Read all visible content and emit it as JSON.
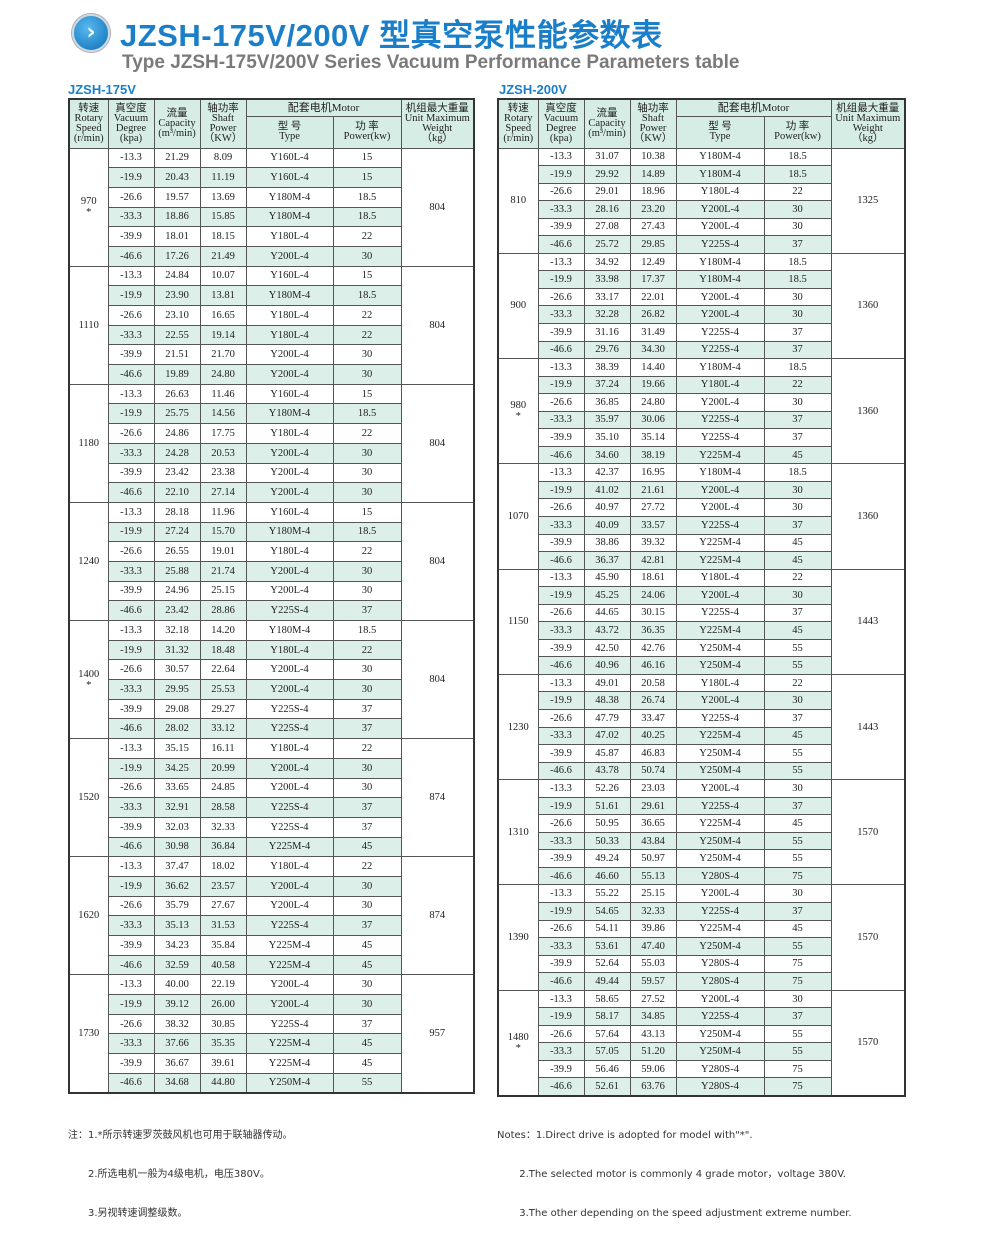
{
  "header": {
    "icon": "chevron-right-circle-icon",
    "title": "JZSH-175V/200V 型真空泵性能参数表",
    "subtitle": "Type JZSH-175V/200V  Series Vacuum Performance Parameters table"
  },
  "columns": {
    "speed": [
      "转速",
      "Rotary",
      "Speed",
      "(r/min)"
    ],
    "vacuum": [
      "真空度",
      "Vacuum",
      "Degree",
      "(kpa)"
    ],
    "capacity": [
      "流量",
      "Capacity",
      "(m³/min)"
    ],
    "shaft": [
      "轴功率",
      "Shaft",
      "Power",
      "（KW）"
    ],
    "motor": "配套电机Motor",
    "type": [
      "型  号",
      "Type"
    ],
    "power": [
      "功  率",
      "Power(kw)"
    ],
    "weight": [
      "机组最大重量",
      "Unit Maximum",
      "Weight",
      "（kg）"
    ]
  },
  "tables": [
    {
      "label": "JZSH-175V",
      "groups": [
        {
          "speed": "970",
          "star": "*",
          "weight": "804",
          "rows": [
            [
              "-13.3",
              "21.29",
              "8.09",
              "Y160L-4",
              "15"
            ],
            [
              "-19.9",
              "20.43",
              "11.19",
              "Y160L-4",
              "15"
            ],
            [
              "-26.6",
              "19.57",
              "13.69",
              "Y180M-4",
              "18.5"
            ],
            [
              "-33.3",
              "18.86",
              "15.85",
              "Y180M-4",
              "18.5"
            ],
            [
              "-39.9",
              "18.01",
              "18.15",
              "Y180L-4",
              "22"
            ],
            [
              "-46.6",
              "17.26",
              "21.49",
              "Y200L-4",
              "30"
            ]
          ]
        },
        {
          "speed": "1110",
          "star": "",
          "weight": "804",
          "rows": [
            [
              "-13.3",
              "24.84",
              "10.07",
              "Y160L-4",
              "15"
            ],
            [
              "-19.9",
              "23.90",
              "13.81",
              "Y180M-4",
              "18.5"
            ],
            [
              "-26.6",
              "23.10",
              "16.65",
              "Y180L-4",
              "22"
            ],
            [
              "-33.3",
              "22.55",
              "19.14",
              "Y180L-4",
              "22"
            ],
            [
              "-39.9",
              "21.51",
              "21.70",
              "Y200L-4",
              "30"
            ],
            [
              "-46.6",
              "19.89",
              "24.80",
              "Y200L-4",
              "30"
            ]
          ]
        },
        {
          "speed": "1180",
          "star": "",
          "weight": "804",
          "rows": [
            [
              "-13.3",
              "26.63",
              "11.46",
              "Y160L-4",
              "15"
            ],
            [
              "-19.9",
              "25.75",
              "14.56",
              "Y180M-4",
              "18.5"
            ],
            [
              "-26.6",
              "24.86",
              "17.75",
              "Y180L-4",
              "22"
            ],
            [
              "-33.3",
              "24.28",
              "20.53",
              "Y200L-4",
              "30"
            ],
            [
              "-39.9",
              "23.42",
              "23.38",
              "Y200L-4",
              "30"
            ],
            [
              "-46.6",
              "22.10",
              "27.14",
              "Y200L-4",
              "30"
            ]
          ]
        },
        {
          "speed": "1240",
          "star": "",
          "weight": "804",
          "rows": [
            [
              "-13.3",
              "28.18",
              "11.96",
              "Y160L-4",
              "15"
            ],
            [
              "-19.9",
              "27.24",
              "15.70",
              "Y180M-4",
              "18.5"
            ],
            [
              "-26.6",
              "26.55",
              "19.01",
              "Y180L-4",
              "22"
            ],
            [
              "-33.3",
              "25.88",
              "21.74",
              "Y200L-4",
              "30"
            ],
            [
              "-39.9",
              "24.96",
              "25.15",
              "Y200L-4",
              "30"
            ],
            [
              "-46.6",
              "23.42",
              "28.86",
              "Y225S-4",
              "37"
            ]
          ]
        },
        {
          "speed": "1400",
          "star": "*",
          "weight": "804",
          "rows": [
            [
              "-13.3",
              "32.18",
              "14.20",
              "Y180M-4",
              "18.5"
            ],
            [
              "-19.9",
              "31.32",
              "18.48",
              "Y180L-4",
              "22"
            ],
            [
              "-26.6",
              "30.57",
              "22.64",
              "Y200L-4",
              "30"
            ],
            [
              "-33.3",
              "29.95",
              "25.53",
              "Y200L-4",
              "30"
            ],
            [
              "-39.9",
              "29.08",
              "29.27",
              "Y225S-4",
              "37"
            ],
            [
              "-46.6",
              "28.02",
              "33.12",
              "Y225S-4",
              "37"
            ]
          ]
        },
        {
          "speed": "1520",
          "star": "",
          "weight": "874",
          "rows": [
            [
              "-13.3",
              "35.15",
              "16.11",
              "Y180L-4",
              "22"
            ],
            [
              "-19.9",
              "34.25",
              "20.99",
              "Y200L-4",
              "30"
            ],
            [
              "-26.6",
              "33.65",
              "24.85",
              "Y200L-4",
              "30"
            ],
            [
              "-33.3",
              "32.91",
              "28.58",
              "Y225S-4",
              "37"
            ],
            [
              "-39.9",
              "32.03",
              "32.33",
              "Y225S-4",
              "37"
            ],
            [
              "-46.6",
              "30.98",
              "36.84",
              "Y225M-4",
              "45"
            ]
          ]
        },
        {
          "speed": "1620",
          "star": "",
          "weight": "874",
          "rows": [
            [
              "-13.3",
              "37.47",
              "18.02",
              "Y180L-4",
              "22"
            ],
            [
              "-19.9",
              "36.62",
              "23.57",
              "Y200L-4",
              "30"
            ],
            [
              "-26.6",
              "35.79",
              "27.67",
              "Y200L-4",
              "30"
            ],
            [
              "-33.3",
              "35.13",
              "31.53",
              "Y225S-4",
              "37"
            ],
            [
              "-39.9",
              "34.23",
              "35.84",
              "Y225M-4",
              "45"
            ],
            [
              "-46.6",
              "32.59",
              "40.58",
              "Y225M-4",
              "45"
            ]
          ]
        },
        {
          "speed": "1730",
          "star": "",
          "weight": "957",
          "rows": [
            [
              "-13.3",
              "40.00",
              "22.19",
              "Y200L-4",
              "30"
            ],
            [
              "-19.9",
              "39.12",
              "26.00",
              "Y200L-4",
              "30"
            ],
            [
              "-26.6",
              "38.32",
              "30.85",
              "Y225S-4",
              "37"
            ],
            [
              "-33.3",
              "37.66",
              "35.35",
              "Y225M-4",
              "45"
            ],
            [
              "-39.9",
              "36.67",
              "39.61",
              "Y225M-4",
              "45"
            ],
            [
              "-46.6",
              "34.68",
              "44.80",
              "Y250M-4",
              "55"
            ]
          ]
        }
      ]
    },
    {
      "label": "JZSH-200V",
      "groups": [
        {
          "speed": "810",
          "star": "",
          "weight": "1325",
          "rows": [
            [
              "-13.3",
              "31.07",
              "10.38",
              "Y180M-4",
              "18.5"
            ],
            [
              "-19.9",
              "29.92",
              "14.89",
              "Y180M-4",
              "18.5"
            ],
            [
              "-26.6",
              "29.01",
              "18.96",
              "Y180L-4",
              "22"
            ],
            [
              "-33.3",
              "28.16",
              "23.20",
              "Y200L-4",
              "30"
            ],
            [
              "-39.9",
              "27.08",
              "27.43",
              "Y200L-4",
              "30"
            ],
            [
              "-46.6",
              "25.72",
              "29.85",
              "Y225S-4",
              "37"
            ]
          ]
        },
        {
          "speed": "900",
          "star": "",
          "weight": "1360",
          "rows": [
            [
              "-13.3",
              "34.92",
              "12.49",
              "Y180M-4",
              "18.5"
            ],
            [
              "-19.9",
              "33.98",
              "17.37",
              "Y180M-4",
              "18.5"
            ],
            [
              "-26.6",
              "33.17",
              "22.01",
              "Y200L-4",
              "30"
            ],
            [
              "-33.3",
              "32.28",
              "26.82",
              "Y200L-4",
              "30"
            ],
            [
              "-39.9",
              "31.16",
              "31.49",
              "Y225S-4",
              "37"
            ],
            [
              "-46.6",
              "29.76",
              "34.30",
              "Y225S-4",
              "37"
            ]
          ]
        },
        {
          "speed": "980",
          "star": "*",
          "weight": "1360",
          "rows": [
            [
              "-13.3",
              "38.39",
              "14.40",
              "Y180M-4",
              "18.5"
            ],
            [
              "-19.9",
              "37.24",
              "19.66",
              "Y180L-4",
              "22"
            ],
            [
              "-26.6",
              "36.85",
              "24.80",
              "Y200L-4",
              "30"
            ],
            [
              "-33.3",
              "35.97",
              "30.06",
              "Y225S-4",
              "37"
            ],
            [
              "-39.9",
              "35.10",
              "35.14",
              "Y225S-4",
              "37"
            ],
            [
              "-46.6",
              "34.60",
              "38.19",
              "Y225M-4",
              "45"
            ]
          ]
        },
        {
          "speed": "1070",
          "star": "",
          "weight": "1360",
          "rows": [
            [
              "-13.3",
              "42.37",
              "16.95",
              "Y180M-4",
              "18.5"
            ],
            [
              "-19.9",
              "41.02",
              "21.61",
              "Y200L-4",
              "30"
            ],
            [
              "-26.6",
              "40.97",
              "27.72",
              "Y200L-4",
              "30"
            ],
            [
              "-33.3",
              "40.09",
              "33.57",
              "Y225S-4",
              "37"
            ],
            [
              "-39.9",
              "38.86",
              "39.32",
              "Y225M-4",
              "45"
            ],
            [
              "-46.6",
              "36.37",
              "42.81",
              "Y225M-4",
              "45"
            ]
          ]
        },
        {
          "speed": "1150",
          "star": "",
          "weight": "1443",
          "rows": [
            [
              "-13.3",
              "45.90",
              "18.61",
              "Y180L-4",
              "22"
            ],
            [
              "-19.9",
              "45.25",
              "24.06",
              "Y200L-4",
              "30"
            ],
            [
              "-26.6",
              "44.65",
              "30.15",
              "Y225S-4",
              "37"
            ],
            [
              "-33.3",
              "43.72",
              "36.35",
              "Y225M-4",
              "45"
            ],
            [
              "-39.9",
              "42.50",
              "42.76",
              "Y250M-4",
              "55"
            ],
            [
              "-46.6",
              "40.96",
              "46.16",
              "Y250M-4",
              "55"
            ]
          ]
        },
        {
          "speed": "1230",
          "star": "",
          "weight": "1443",
          "rows": [
            [
              "-13.3",
              "49.01",
              "20.58",
              "Y180L-4",
              "22"
            ],
            [
              "-19.9",
              "48.38",
              "26.74",
              "Y200L-4",
              "30"
            ],
            [
              "-26.6",
              "47.79",
              "33.47",
              "Y225S-4",
              "37"
            ],
            [
              "-33.3",
              "47.02",
              "40.25",
              "Y225M-4",
              "45"
            ],
            [
              "-39.9",
              "45.87",
              "46.83",
              "Y250M-4",
              "55"
            ],
            [
              "-46.6",
              "43.78",
              "50.74",
              "Y250M-4",
              "55"
            ]
          ]
        },
        {
          "speed": "1310",
          "star": "",
          "weight": "1570",
          "rows": [
            [
              "-13.3",
              "52.26",
              "23.03",
              "Y200L-4",
              "30"
            ],
            [
              "-19.9",
              "51.61",
              "29.61",
              "Y225S-4",
              "37"
            ],
            [
              "-26.6",
              "50.95",
              "36.65",
              "Y225M-4",
              "45"
            ],
            [
              "-33.3",
              "50.33",
              "43.84",
              "Y250M-4",
              "55"
            ],
            [
              "-39.9",
              "49.24",
              "50.97",
              "Y250M-4",
              "55"
            ],
            [
              "-46.6",
              "46.60",
              "55.13",
              "Y280S-4",
              "75"
            ]
          ]
        },
        {
          "speed": "1390",
          "star": "",
          "weight": "1570",
          "rows": [
            [
              "-13.3",
              "55.22",
              "25.15",
              "Y200L-4",
              "30"
            ],
            [
              "-19.9",
              "54.65",
              "32.33",
              "Y225S-4",
              "37"
            ],
            [
              "-26.6",
              "54.11",
              "39.86",
              "Y225M-4",
              "45"
            ],
            [
              "-33.3",
              "53.61",
              "47.40",
              "Y250M-4",
              "55"
            ],
            [
              "-39.9",
              "52.64",
              "55.03",
              "Y280S-4",
              "75"
            ],
            [
              "-46.6",
              "49.44",
              "59.57",
              "Y280S-4",
              "75"
            ]
          ]
        },
        {
          "speed": "1480",
          "star": "*",
          "weight": "1570",
          "rows": [
            [
              "-13.3",
              "58.65",
              "27.52",
              "Y200L-4",
              "30"
            ],
            [
              "-19.9",
              "58.17",
              "34.85",
              "Y225S-4",
              "37"
            ],
            [
              "-26.6",
              "57.64",
              "43.13",
              "Y250M-4",
              "55"
            ],
            [
              "-33.3",
              "57.05",
              "51.20",
              "Y250M-4",
              "55"
            ],
            [
              "-39.9",
              "56.46",
              "59.06",
              "Y280S-4",
              "75"
            ],
            [
              "-46.6",
              "52.61",
              "63.76",
              "Y280S-4",
              "75"
            ]
          ]
        }
      ]
    }
  ],
  "notes_cn": [
    "注：1.*所示转速罗茨鼓风机也可用于联轴器传动。",
    "　　2.所选电机一般为4级电机，电压380V。",
    "　　3.另视转速调整级数。"
  ],
  "notes_en": [
    "Notes：1.Direct drive is adopted for model with\"*\".",
    "       2.The selected motor is commonly 4 grade motor，voltage 380V.",
    "       3.The other depending on the speed adjustment extreme number."
  ],
  "colors": {
    "title": "#1a7fc8",
    "header_bg": "#d6ede6",
    "row_alt": "#dcefe8",
    "subtitle": "#7a7a7a"
  }
}
